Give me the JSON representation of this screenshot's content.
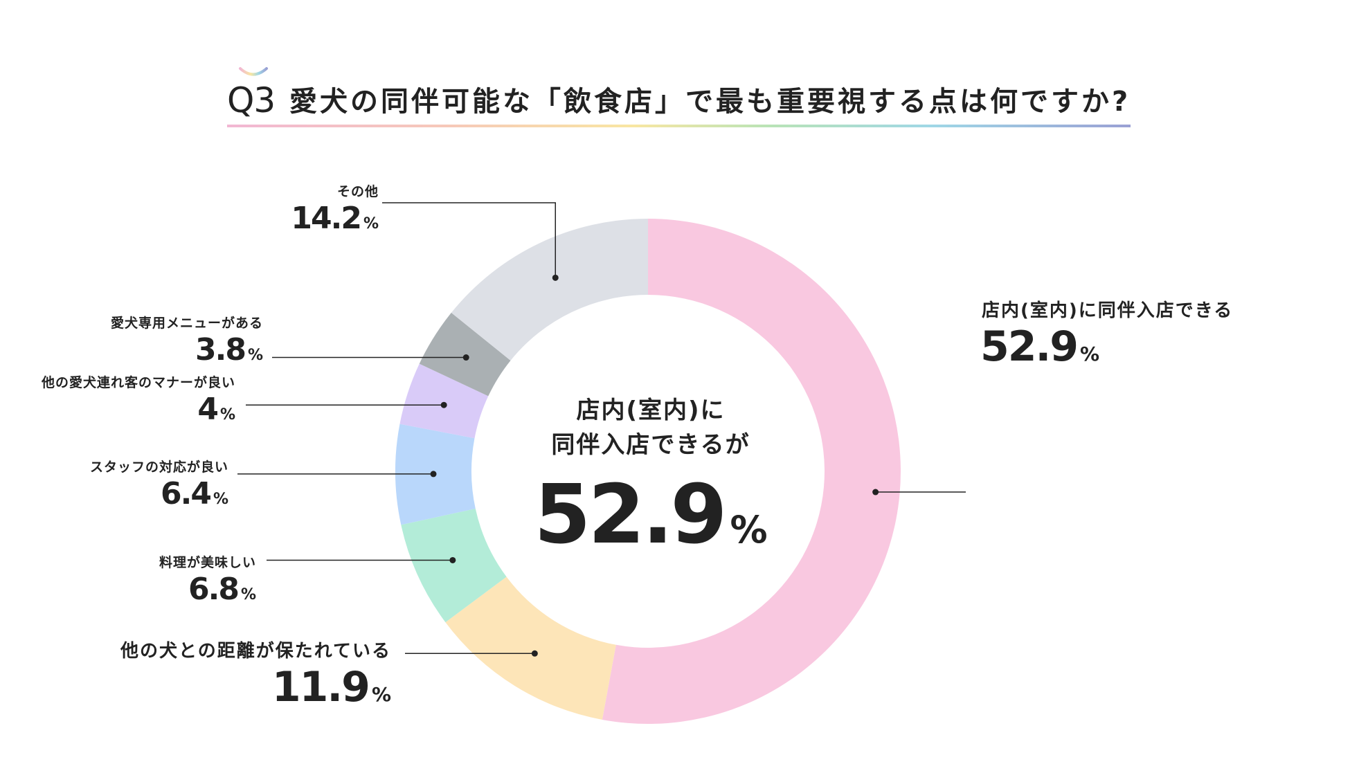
{
  "title": {
    "q": "Q3",
    "text": "愛犬の同伴可能な「飲食店」で最も重要視する点は何ですか?"
  },
  "center": {
    "line1": "店内(室内)に",
    "line2": "同伴入店できるが",
    "value": "52.9",
    "unit": "%"
  },
  "chart_data": {
    "type": "pie",
    "title": "愛犬の同伴可能な「飲食店」で最も重要視する点は何ですか?",
    "unit": "%",
    "slices": [
      {
        "label": "店内(室内)に同伴入店できる",
        "value": 52.9,
        "color": "#f9c8e0"
      },
      {
        "label": "他の犬との距離が保たれている",
        "value": 11.9,
        "color": "#fde5b8"
      },
      {
        "label": "料理が美味しい",
        "value": 6.8,
        "color": "#b3ecd8"
      },
      {
        "label": "スタッフの対応が良い",
        "value": 6.4,
        "color": "#b9d7fb"
      },
      {
        "label": "他の愛犬連れ客のマナーが良い",
        "value": 4,
        "color": "#d9cbf8"
      },
      {
        "label": "愛犬専用メニューがある",
        "value": 3.8,
        "color": "#aab0b3"
      },
      {
        "label": "その他",
        "value": 14.2,
        "color": "#dde0e6"
      }
    ]
  },
  "labels": [
    {
      "name": "店内(室内)に同伴入店できる",
      "value": "52.9",
      "unit": "%"
    },
    {
      "name": "他の犬との距離が保たれている",
      "value": "11.9",
      "unit": "%"
    },
    {
      "name": "料理が美味しい",
      "value": "6.8",
      "unit": "%"
    },
    {
      "name": "スタッフの対応が良い",
      "value": "6.4",
      "unit": "%"
    },
    {
      "name": "他の愛犬連れ客のマナーが良い",
      "value": "4",
      "unit": "%"
    },
    {
      "name": "愛犬専用メニューがある",
      "value": "3.8",
      "unit": "%"
    },
    {
      "name": "その他",
      "value": "14.2",
      "unit": "%"
    }
  ]
}
